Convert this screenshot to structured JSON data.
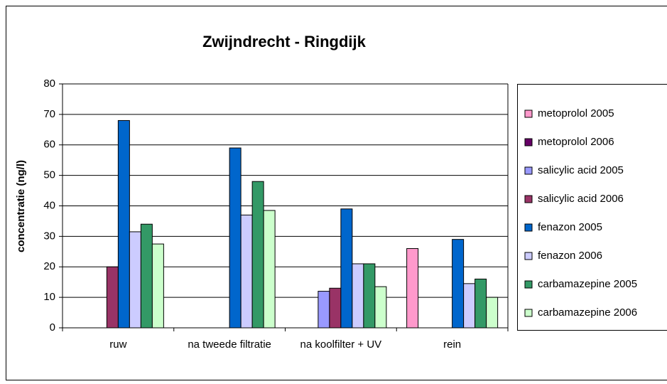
{
  "chart_data": {
    "type": "bar",
    "title": "Zwijndrecht - Ringdijk",
    "ylabel": "concentratie (ng/l)",
    "categories": [
      "ruw",
      "na tweede filtratie",
      "na koolfilter + UV",
      "rein"
    ],
    "series": [
      {
        "name": "metoprolol 2005",
        "color": "#ff99cc",
        "values": [
          null,
          null,
          null,
          26
        ]
      },
      {
        "name": "metoprolol 2006",
        "color": "#660066",
        "values": [
          null,
          null,
          null,
          null
        ]
      },
      {
        "name": "salicylic acid 2005",
        "color": "#9999ff",
        "values": [
          null,
          null,
          12,
          null
        ]
      },
      {
        "name": "salicylic acid 2006",
        "color": "#993366",
        "values": [
          20,
          null,
          13,
          null
        ]
      },
      {
        "name": "fenazon 2005",
        "color": "#0066cc",
        "values": [
          68,
          59,
          39,
          29
        ]
      },
      {
        "name": "fenazon 2006",
        "color": "#ccccff",
        "values": [
          31.5,
          37,
          21,
          14.5
        ]
      },
      {
        "name": "carbamazepine 2005",
        "color": "#339966",
        "values": [
          34,
          48,
          21,
          16
        ]
      },
      {
        "name": "carbamazepine 2006",
        "color": "#ccffcc",
        "values": [
          27.5,
          38.5,
          13.5,
          10
        ]
      }
    ],
    "ylim": [
      0,
      80
    ],
    "yticks": [
      0,
      10,
      20,
      30,
      40,
      50,
      60,
      70,
      80
    ],
    "grid": true,
    "legend": "right"
  }
}
